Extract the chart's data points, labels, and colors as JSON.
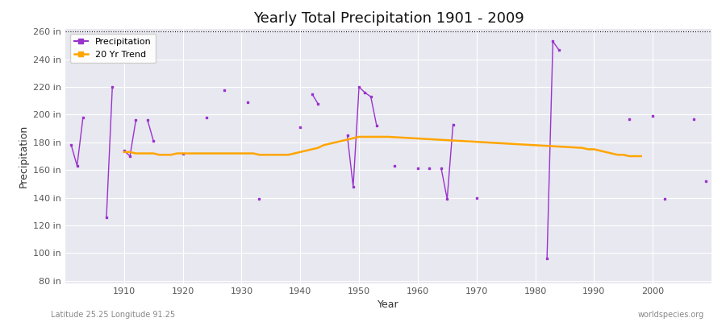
{
  "title": "Yearly Total Precipitation 1901 - 2009",
  "xlabel": "Year",
  "ylabel": "Precipitation",
  "bottom_left_label": "Latitude 25.25 Longitude 91.25",
  "bottom_right_label": "worldspecies.org",
  "ylim": [
    78,
    262
  ],
  "yticks": [
    80,
    100,
    120,
    140,
    160,
    180,
    200,
    220,
    240,
    260
  ],
  "ytick_labels": [
    "80 in",
    "100 in",
    "120 in",
    "140 in",
    "160 in",
    "180 in",
    "200 in",
    "220 in",
    "240 in",
    "260 in"
  ],
  "xticks": [
    1910,
    1920,
    1930,
    1940,
    1950,
    1960,
    1970,
    1980,
    1990,
    2000
  ],
  "bg_color": "#e8e8f0",
  "fig_bg_color": "#ffffff",
  "precip_color": "#9933cc",
  "trend_color": "#ffa500",
  "precip_linewidth": 1.0,
  "trend_linewidth": 1.8,
  "years": [
    1901,
    1902,
    1903,
    1904,
    1905,
    1906,
    1907,
    1908,
    1909,
    1910,
    1911,
    1912,
    1913,
    1914,
    1915,
    1916,
    1917,
    1918,
    1919,
    1920,
    1921,
    1922,
    1923,
    1924,
    1925,
    1926,
    1927,
    1928,
    1929,
    1930,
    1931,
    1932,
    1933,
    1934,
    1935,
    1936,
    1937,
    1938,
    1939,
    1940,
    1941,
    1942,
    1943,
    1944,
    1945,
    1946,
    1947,
    1948,
    1949,
    1950,
    1951,
    1952,
    1953,
    1954,
    1955,
    1956,
    1957,
    1958,
    1959,
    1960,
    1961,
    1962,
    1963,
    1964,
    1965,
    1966,
    1967,
    1968,
    1969,
    1970,
    1971,
    1972,
    1973,
    1974,
    1975,
    1976,
    1977,
    1978,
    1979,
    1980,
    1981,
    1982,
    1983,
    1984,
    1985,
    1986,
    1987,
    1988,
    1989,
    1990,
    1991,
    1992,
    1993,
    1994,
    1995,
    1996,
    1997,
    1998,
    1999,
    2000,
    2001,
    2002,
    2003,
    2004,
    2005,
    2006,
    2007,
    2008,
    2009
  ],
  "precip": [
    178,
    163,
    198,
    null,
    null,
    null,
    126,
    220,
    null,
    174,
    170,
    196,
    null,
    196,
    181,
    null,
    null,
    null,
    null,
    172,
    null,
    null,
    null,
    198,
    null,
    null,
    218,
    null,
    null,
    null,
    209,
    null,
    139,
    null,
    null,
    null,
    null,
    null,
    null,
    191,
    null,
    215,
    208,
    null,
    null,
    null,
    null,
    185,
    148,
    220,
    216,
    213,
    192,
    null,
    null,
    163,
    null,
    null,
    null,
    161,
    null,
    161,
    null,
    161,
    139,
    193,
    null,
    null,
    null,
    140,
    null,
    null,
    null,
    null,
    null,
    null,
    null,
    null,
    null,
    null,
    null,
    96,
    253,
    247,
    null,
    null,
    null,
    null,
    null,
    null,
    null,
    null,
    null,
    null,
    null,
    197,
    null,
    null,
    null,
    199,
    null,
    139,
    null,
    null,
    null,
    null,
    197,
    null,
    152
  ],
  "precip_connected": [
    [
      1901,
      1902,
      1903
    ],
    [
      1907,
      1908
    ],
    [
      1910,
      1911,
      1912
    ],
    [
      1914,
      1915
    ],
    [
      1920
    ],
    [
      1924
    ],
    [
      1927
    ],
    [
      1931
    ],
    [
      1933
    ],
    [
      1940
    ],
    [
      1942,
      1943
    ],
    [
      1948,
      1949,
      1950,
      1951,
      1952,
      1953
    ],
    [
      1956
    ],
    [
      1960
    ],
    [
      1962
    ],
    [
      1965,
      1966
    ],
    [
      1970
    ],
    [
      1982,
      1983,
      1984
    ],
    [
      1996
    ],
    [
      1999,
      2000
    ],
    [
      1907,
      1908
    ],
    [
      2002
    ],
    [
      2007
    ],
    [
      2009
    ]
  ],
  "trend_years": [
    1910,
    1911,
    1912,
    1913,
    1914,
    1915,
    1916,
    1917,
    1918,
    1919,
    1920,
    1921,
    1922,
    1923,
    1924,
    1925,
    1926,
    1927,
    1928,
    1929,
    1930,
    1931,
    1932,
    1933,
    1934,
    1935,
    1936,
    1937,
    1938,
    1939,
    1940,
    1941,
    1942,
    1943,
    1944,
    1945,
    1946,
    1947,
    1948,
    1949,
    1950,
    1951,
    1952,
    1953,
    1954,
    1955,
    1988,
    1989,
    1990,
    1991,
    1992,
    1993,
    1994,
    1995,
    1996,
    1997,
    1998
  ],
  "trend": [
    173,
    173,
    172,
    172,
    172,
    172,
    171,
    171,
    171,
    172,
    172,
    172,
    172,
    172,
    172,
    172,
    172,
    172,
    172,
    172,
    172,
    172,
    172,
    171,
    171,
    171,
    171,
    171,
    171,
    172,
    173,
    174,
    175,
    176,
    178,
    179,
    180,
    181,
    182,
    183,
    184,
    184,
    184,
    184,
    184,
    184,
    176,
    175,
    175,
    174,
    173,
    172,
    171,
    171,
    170,
    170,
    170
  ]
}
